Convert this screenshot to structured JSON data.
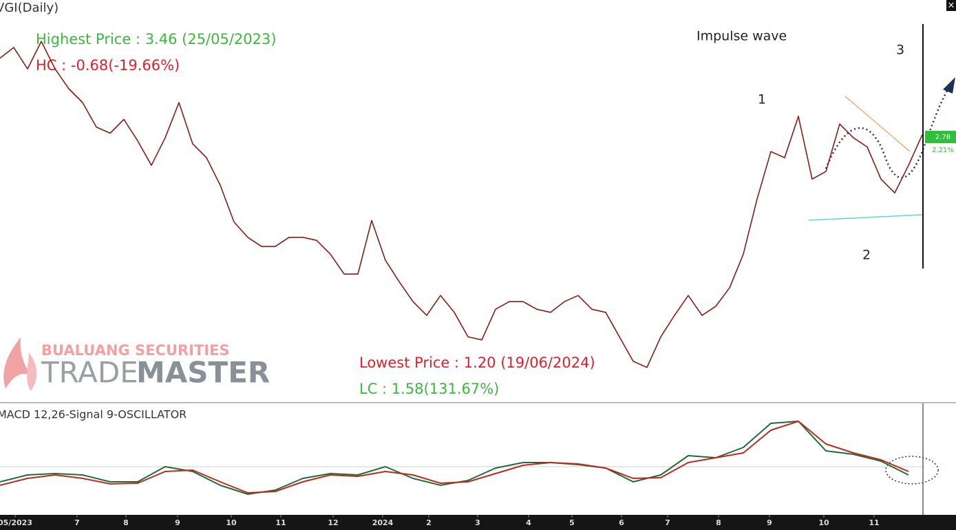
{
  "chart_data": [
    {
      "type": "line",
      "title": "VGI(Daily)",
      "annotations": [
        "Highest Price : 3.46 (25/05/2023)",
        "HC : -0.68(-19.66%)",
        "Lowest Price : 1.20 (19/06/2024)",
        "LC : 1.58(131.67%)",
        "Impulse wave",
        "1",
        "2",
        "3",
        "2.78",
        "2.21%"
      ],
      "watermark": [
        "BUALUANG SECURITIES",
        "TRADE",
        "MASTER"
      ],
      "x": [
        0,
        1,
        2,
        3,
        4,
        5,
        6,
        7,
        8,
        9,
        10,
        11,
        12,
        13,
        14,
        15,
        16,
        17,
        18,
        19,
        20,
        21,
        22,
        23,
        24,
        25,
        26,
        27,
        28,
        29,
        30,
        31,
        32,
        33,
        34,
        35,
        36,
        37,
        38,
        39,
        40,
        41,
        42,
        43,
        44,
        45,
        46,
        47,
        48,
        49,
        50,
        51,
        52,
        53,
        54,
        55,
        56,
        57,
        58,
        59,
        60,
        61,
        62,
        63,
        64,
        65,
        66,
        67
      ],
      "series": [
        {
          "name": "VGI",
          "color": "#8b1a10",
          "values": [
            3.28,
            3.35,
            3.21,
            3.39,
            3.21,
            3.08,
            2.99,
            2.83,
            2.79,
            2.88,
            2.74,
            2.58,
            2.76,
            2.99,
            2.72,
            2.63,
            2.45,
            2.21,
            2.11,
            2.05,
            2.05,
            2.11,
            2.11,
            2.09,
            2.0,
            1.87,
            1.87,
            2.22,
            1.96,
            1.82,
            1.69,
            1.6,
            1.73,
            1.62,
            1.46,
            1.44,
            1.64,
            1.69,
            1.69,
            1.64,
            1.62,
            1.69,
            1.73,
            1.64,
            1.62,
            1.46,
            1.3,
            1.26,
            1.46,
            1.6,
            1.73,
            1.6,
            1.66,
            1.78,
            2.0,
            2.36,
            2.67,
            2.63,
            2.9,
            2.49,
            2.54,
            2.85,
            2.76,
            2.7,
            2.49,
            2.4,
            2.58,
            2.78
          ]
        }
      ],
      "xlim": [
        0,
        67
      ],
      "ylim": [
        1.03,
        3.66
      ],
      "xticks": [
        {
          "value": 1.1,
          "label": "05/2023"
        },
        {
          "value": 5.6,
          "label": "7"
        },
        {
          "value": 9.15,
          "label": "8"
        },
        {
          "value": 12.9,
          "label": "9"
        },
        {
          "value": 16.8,
          "label": "10"
        },
        {
          "value": 20.4,
          "label": "11"
        },
        {
          "value": 24.2,
          "label": "12"
        },
        {
          "value": 27.8,
          "label": "2024"
        },
        {
          "value": 31.15,
          "label": "2"
        },
        {
          "value": 34.7,
          "label": "3"
        },
        {
          "value": 38.4,
          "label": "4"
        },
        {
          "value": 41.55,
          "label": "5"
        },
        {
          "value": 45.15,
          "label": "6"
        },
        {
          "value": 48.5,
          "label": "7"
        },
        {
          "value": 52.2,
          "label": "8"
        },
        {
          "value": 55.9,
          "label": "9"
        },
        {
          "value": 59.85,
          "label": "10"
        },
        {
          "value": 63.5,
          "label": "11"
        }
      ]
    },
    {
      "type": "line",
      "title": "MACD 12,26-Signal 9-OSCILLATOR",
      "x": [
        0,
        2,
        4,
        6,
        8,
        10,
        12,
        14,
        16,
        18,
        20,
        22,
        24,
        26,
        28,
        30,
        32,
        34,
        36,
        38,
        40,
        42,
        44,
        46,
        48,
        50,
        52,
        54,
        56,
        58,
        60,
        62,
        64,
        66
      ],
      "series": [
        {
          "name": "MACD",
          "color": "#1b6e3a",
          "values": [
            -0.055,
            -0.03,
            -0.025,
            -0.03,
            -0.055,
            -0.055,
            0,
            -0.0175,
            -0.0675,
            -0.1,
            -0.085,
            -0.0425,
            -0.025,
            -0.03,
            0,
            -0.0425,
            -0.0675,
            -0.05,
            -0.005,
            0.015,
            0.015,
            0.0075,
            -0.005,
            -0.055,
            -0.03,
            0.04,
            0.0325,
            0.07,
            0.1575,
            0.165,
            0.0575,
            0.045,
            0.02,
            -0.03
          ]
        },
        {
          "name": "Signal",
          "color": "#c0281c",
          "values": [
            -0.0675,
            -0.0425,
            -0.03,
            -0.0425,
            -0.0625,
            -0.06,
            -0.0175,
            -0.0125,
            -0.055,
            -0.095,
            -0.09,
            -0.055,
            -0.03,
            -0.035,
            -0.0175,
            -0.03,
            -0.06,
            -0.055,
            -0.025,
            0.005,
            0.015,
            0.01,
            -0.005,
            -0.0425,
            -0.04,
            0.015,
            0.0325,
            0.05,
            0.1325,
            0.165,
            0.0825,
            0.05,
            0.025,
            -0.0175
          ]
        }
      ],
      "xlim": [
        0,
        67
      ],
      "ylim": [
        -0.1675,
        0.195
      ]
    }
  ]
}
